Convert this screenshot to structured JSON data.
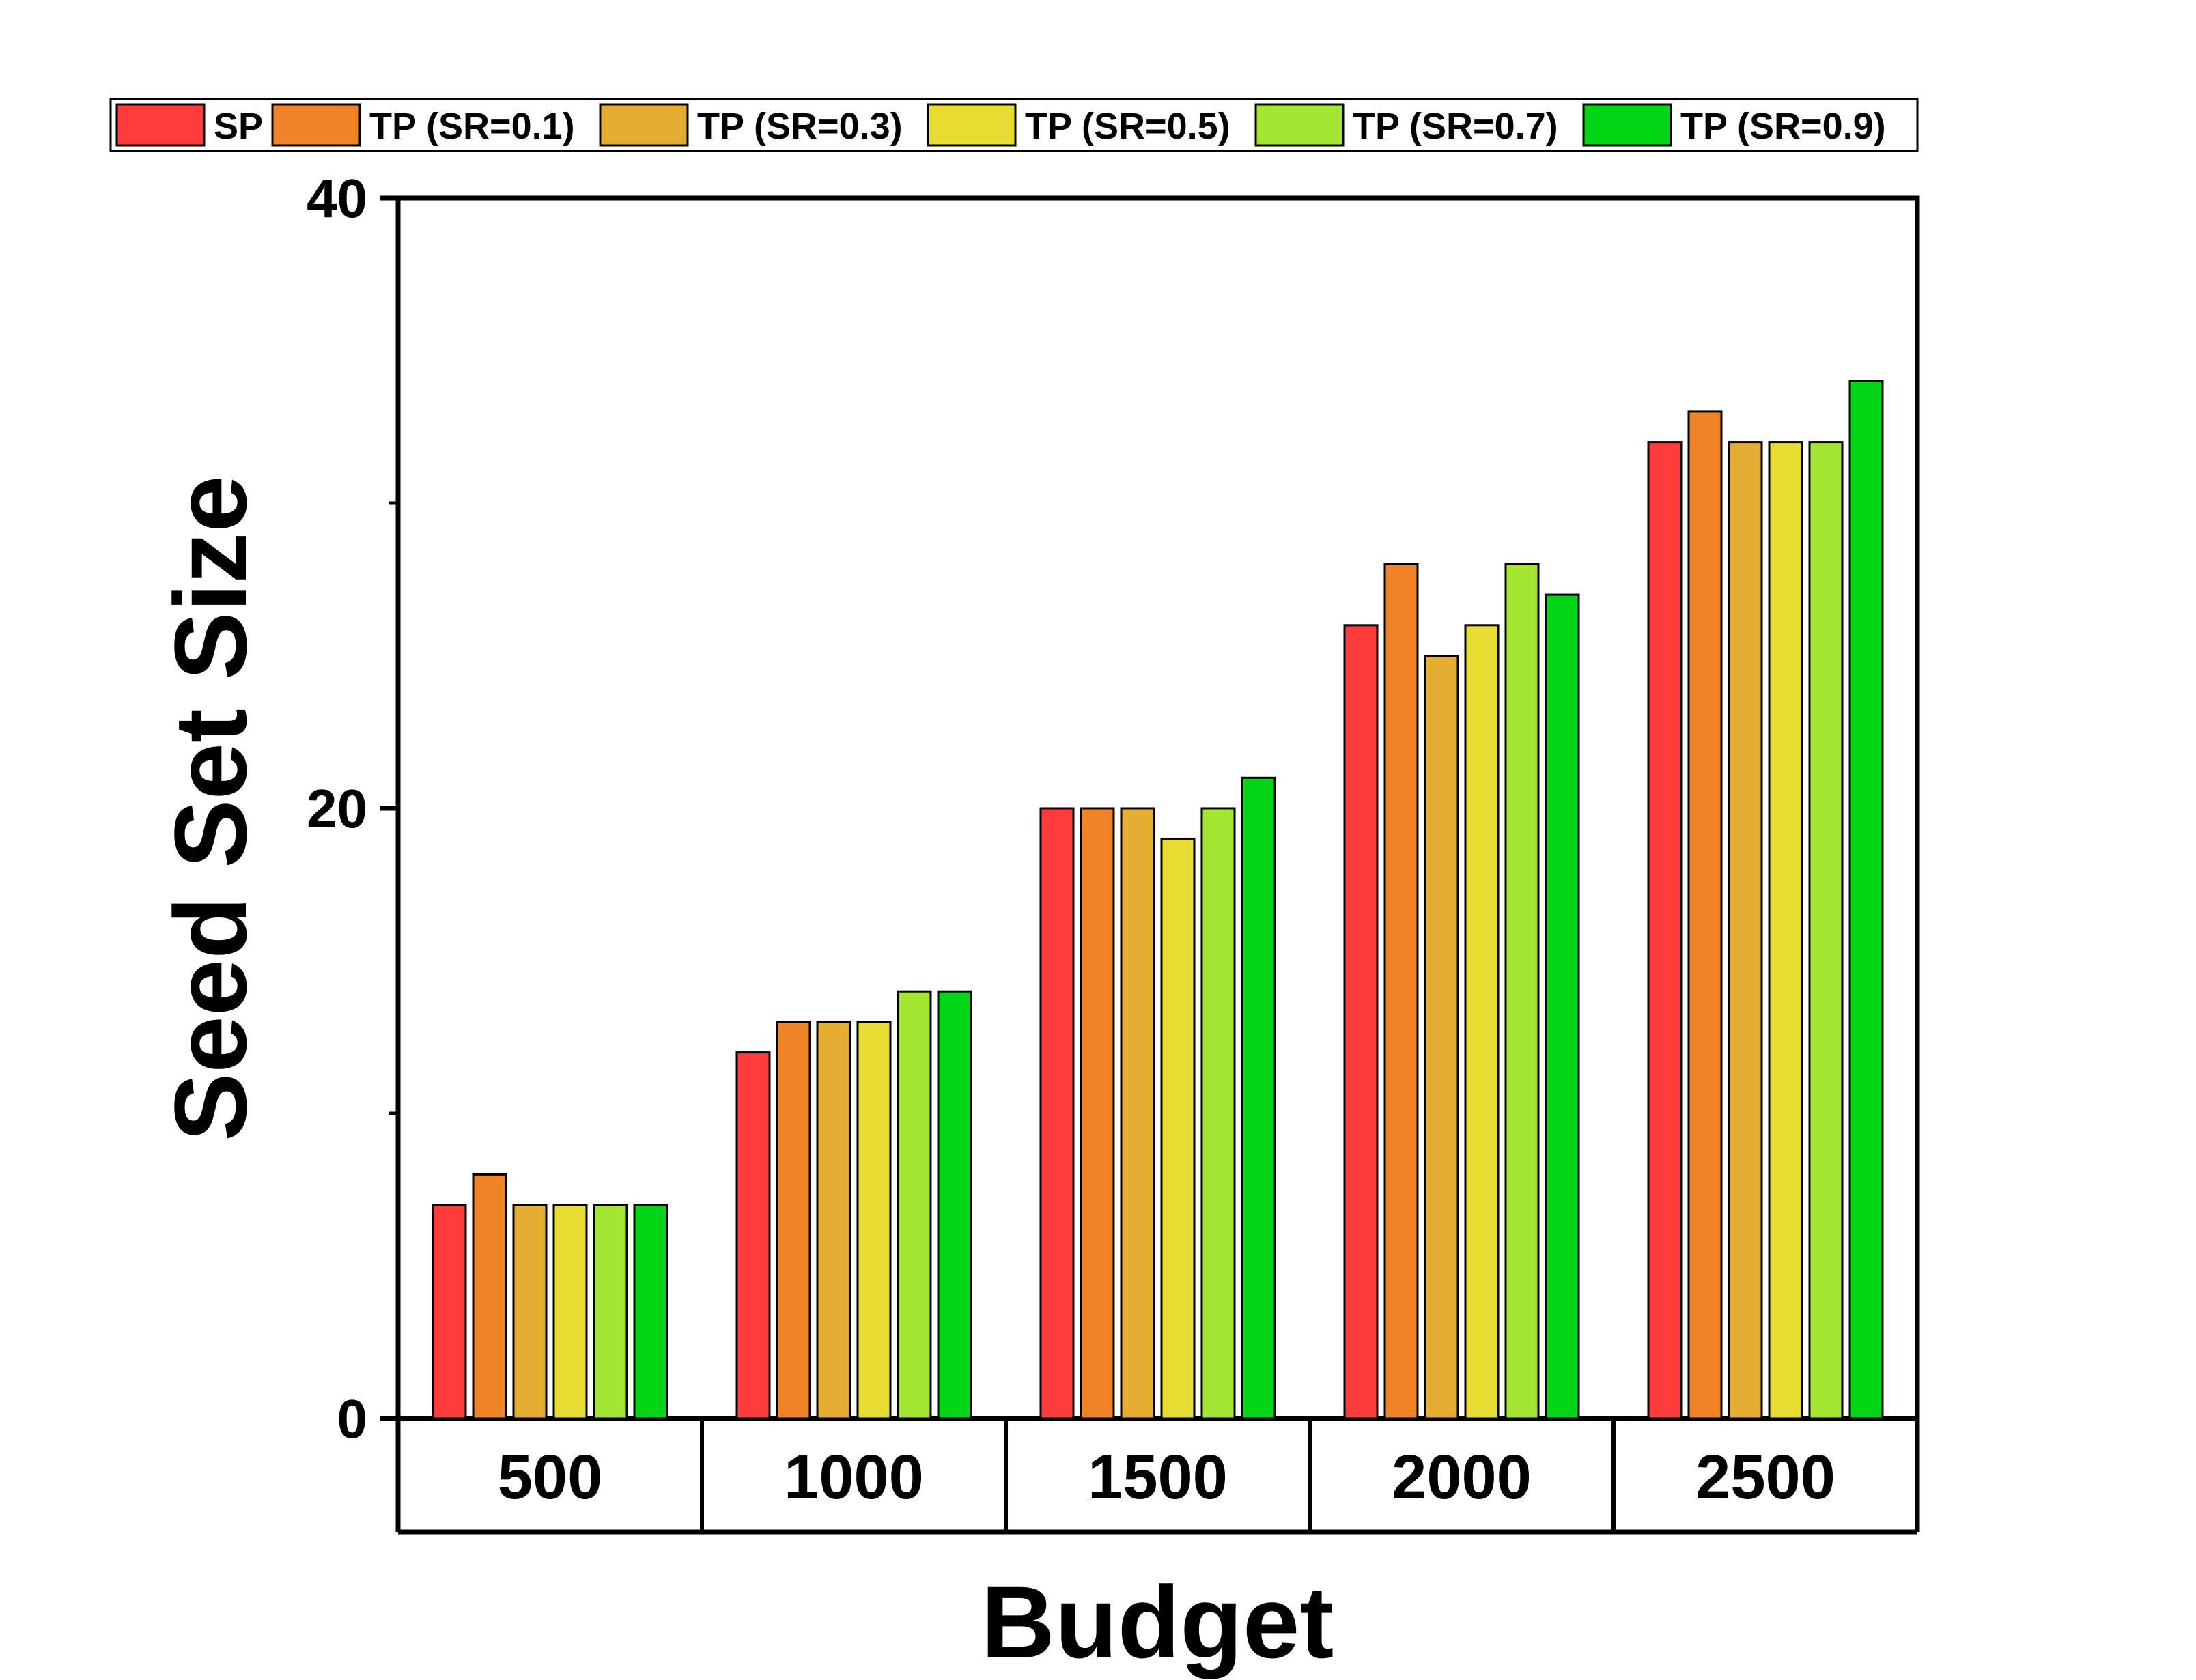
{
  "chart_data": {
    "type": "bar",
    "title": "",
    "xlabel": "Budget",
    "ylabel": "Seed Set Size",
    "categories": [
      "500",
      "1000",
      "1500",
      "2000",
      "2500"
    ],
    "ylim": [
      0,
      40
    ],
    "yticks": [
      0,
      20,
      40
    ],
    "yminor": [
      10,
      30
    ],
    "legend_position": "top",
    "grid": false,
    "series": [
      {
        "name": "SP",
        "color": "#FF3B3B",
        "values": [
          7,
          12,
          20,
          26,
          32
        ]
      },
      {
        "name": "TP (SR=0.1)",
        "color": "#F08228",
        "values": [
          8,
          13,
          20,
          28,
          33
        ]
      },
      {
        "name": "TP (SR=0.3)",
        "color": "#E5AE32",
        "values": [
          7,
          13,
          20,
          25,
          32
        ]
      },
      {
        "name": "TP (SR=0.5)",
        "color": "#E8DC32",
        "values": [
          7,
          13,
          19,
          26,
          32
        ]
      },
      {
        "name": "TP (SR=0.7)",
        "color": "#A2E632",
        "values": [
          7,
          14,
          20,
          28,
          32
        ]
      },
      {
        "name": "TP (SR=0.9)",
        "color": "#00D516",
        "values": [
          7,
          14,
          21,
          27,
          34
        ]
      }
    ]
  }
}
